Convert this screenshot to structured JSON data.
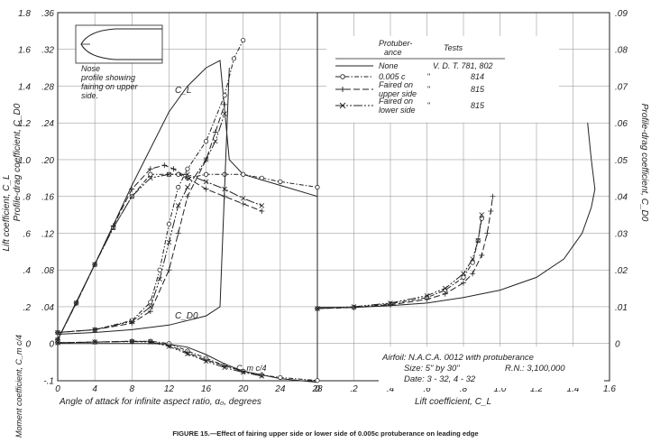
{
  "caption": "FIGURE 15.—Effect of fairing upper side or lower side of 0.005c protuberance on leading edge",
  "chart_data": [
    {
      "type": "line",
      "panel": "left",
      "xlabel": "Angle of attack for infinite aspect ratio, α₀, degrees",
      "xlim": [
        0,
        28
      ],
      "x_ticks": [
        "0",
        "4",
        "8",
        "12",
        "16",
        "20",
        "24",
        "28"
      ],
      "axes": {
        "lift": {
          "label": "Lift coefficient, C_L",
          "range": [
            0,
            1.8
          ],
          "ticks": [
            "0",
            ".2",
            ".4",
            ".6",
            ".8",
            "1.0",
            "1.2",
            "1.4",
            "1.6",
            "1.8"
          ]
        },
        "drag_left": {
          "label": "Profile-drag coefficient, C_D0",
          "range": [
            0,
            0.36
          ],
          "ticks": [
            "0",
            ".04",
            ".08",
            ".12",
            ".16",
            ".20",
            ".24",
            ".28",
            ".32",
            ".36"
          ]
        },
        "moment": {
          "label": "Moment coefficient, C_m c/4",
          "range": [
            -0.1,
            0
          ],
          "ticks": [
            "0",
            "-.1"
          ]
        }
      },
      "curve_labels": [
        "C_L",
        "C_D0",
        "C_m c/4"
      ],
      "series": [
        {
          "name": "None",
          "quantity": "lift",
          "x": [
            0,
            4,
            8,
            12,
            14,
            16,
            17.5,
            18.5,
            20,
            24,
            28
          ],
          "y": [
            0.02,
            0.43,
            0.86,
            1.26,
            1.4,
            1.5,
            1.54,
            1.0,
            0.92,
            0.86,
            0.8
          ]
        },
        {
          "name": "0.005c",
          "quantity": "lift",
          "x": [
            0,
            2,
            4,
            6,
            8,
            10,
            12,
            13,
            14,
            16,
            18,
            20,
            22,
            24,
            28
          ],
          "y": [
            0.02,
            0.22,
            0.43,
            0.63,
            0.8,
            0.92,
            0.92,
            0.92,
            0.9,
            0.92,
            0.92,
            0.92,
            0.9,
            0.88,
            0.85
          ]
        },
        {
          "name": "Faired on upper side",
          "quantity": "lift",
          "x": [
            0,
            2,
            4,
            6,
            8,
            10,
            11.5,
            12.5,
            14,
            16,
            18,
            20,
            22
          ],
          "y": [
            0.02,
            0.22,
            0.43,
            0.64,
            0.84,
            0.95,
            0.97,
            0.95,
            0.9,
            0.84,
            0.8,
            0.76,
            0.72
          ]
        },
        {
          "name": "Faired on lower side",
          "quantity": "lift",
          "x": [
            0,
            2,
            4,
            6,
            8,
            10,
            12,
            14,
            16,
            18,
            20,
            22
          ],
          "y": [
            0.02,
            0.22,
            0.43,
            0.63,
            0.8,
            0.9,
            0.92,
            0.92,
            0.88,
            0.84,
            0.79,
            0.75
          ]
        },
        {
          "name": "None",
          "quantity": "drag_left",
          "x": [
            0,
            4,
            8,
            12,
            16,
            17.5,
            18.5
          ],
          "y": [
            0.01,
            0.012,
            0.015,
            0.02,
            0.03,
            0.04,
            0.3
          ]
        },
        {
          "name": "0.005c",
          "quantity": "drag_left",
          "x": [
            0,
            4,
            8,
            10,
            11,
            12,
            13,
            14,
            16,
            18,
            19,
            20
          ],
          "y": [
            0.012,
            0.015,
            0.025,
            0.045,
            0.08,
            0.13,
            0.17,
            0.19,
            0.22,
            0.27,
            0.31,
            0.33
          ]
        },
        {
          "name": "Faired on upper side",
          "quantity": "drag_left",
          "x": [
            0,
            4,
            8,
            10,
            12,
            13,
            14,
            16,
            17,
            18
          ],
          "y": [
            0.012,
            0.015,
            0.022,
            0.035,
            0.08,
            0.12,
            0.16,
            0.2,
            0.23,
            0.26
          ]
        },
        {
          "name": "Faired on lower side",
          "quantity": "drag_left",
          "x": [
            0,
            4,
            8,
            10,
            11,
            12,
            13,
            14,
            16,
            17,
            18
          ],
          "y": [
            0.012,
            0.015,
            0.024,
            0.04,
            0.07,
            0.11,
            0.15,
            0.17,
            0.2,
            0.22,
            0.25
          ]
        },
        {
          "name": "None",
          "quantity": "moment",
          "x": [
            0,
            4,
            8,
            10,
            12,
            14,
            16,
            18,
            20,
            24,
            28
          ],
          "y": [
            0,
            0,
            0,
            0,
            -0.002,
            -0.01,
            -0.03,
            -0.055,
            -0.075,
            -0.095,
            -0.105
          ]
        },
        {
          "name": "0.005c",
          "quantity": "moment",
          "x": [
            0,
            4,
            8,
            10,
            12,
            14,
            16,
            18,
            20,
            22,
            24,
            28
          ],
          "y": [
            0.002,
            0.004,
            0.006,
            0.006,
            0,
            -0.02,
            -0.04,
            -0.06,
            -0.075,
            -0.085,
            -0.092,
            -0.1
          ]
        },
        {
          "name": "Faired on upper side",
          "quantity": "moment",
          "x": [
            0,
            4,
            8,
            10,
            12,
            14,
            16,
            18,
            20,
            22
          ],
          "y": [
            0.002,
            0.004,
            0.006,
            0.005,
            -0.005,
            -0.025,
            -0.045,
            -0.06,
            -0.075,
            -0.085
          ]
        },
        {
          "name": "Faired on lower side",
          "quantity": "moment",
          "x": [
            0,
            4,
            8,
            10,
            12,
            14,
            16,
            18,
            20,
            22
          ],
          "y": [
            0.002,
            0.004,
            0.005,
            0.004,
            -0.008,
            -0.028,
            -0.048,
            -0.065,
            -0.078,
            -0.088
          ]
        }
      ]
    },
    {
      "type": "line",
      "panel": "right",
      "xlabel": "Lift coefficient, C_L",
      "ylabel": "Profile-drag coefficient, C_D0",
      "xlim": [
        0,
        1.6
      ],
      "ylim": [
        0,
        0.09
      ],
      "x_ticks": [
        "0",
        ".2",
        ".4",
        ".6",
        ".8",
        "1.0",
        "1.2",
        "1.4",
        "1.6"
      ],
      "y_ticks": [
        "0",
        ".01",
        ".02",
        ".03",
        ".04",
        ".05",
        ".06",
        ".07",
        ".08",
        ".09"
      ],
      "series": [
        {
          "name": "None",
          "x": [
            0,
            0.2,
            0.4,
            0.6,
            0.8,
            1.0,
            1.2,
            1.35,
            1.45,
            1.5,
            1.52,
            1.5,
            1.48
          ],
          "y": [
            0.0098,
            0.0098,
            0.0103,
            0.011,
            0.0125,
            0.0145,
            0.018,
            0.023,
            0.03,
            0.037,
            0.042,
            0.05,
            0.06
          ]
        },
        {
          "name": "0.005c",
          "x": [
            0,
            0.2,
            0.4,
            0.6,
            0.7,
            0.8,
            0.85,
            0.88,
            0.9
          ],
          "y": [
            0.0095,
            0.0098,
            0.0108,
            0.0125,
            0.0145,
            0.018,
            0.022,
            0.028,
            0.034
          ]
        },
        {
          "name": "Faired on upper side",
          "x": [
            0,
            0.2,
            0.4,
            0.6,
            0.7,
            0.8,
            0.85,
            0.9,
            0.93,
            0.95,
            0.96
          ],
          "y": [
            0.0095,
            0.0098,
            0.0105,
            0.012,
            0.0135,
            0.0165,
            0.019,
            0.024,
            0.03,
            0.036,
            0.04
          ]
        },
        {
          "name": "Faired on lower side",
          "x": [
            0,
            0.2,
            0.4,
            0.6,
            0.7,
            0.8,
            0.85,
            0.88,
            0.9
          ],
          "y": [
            0.0095,
            0.01,
            0.011,
            0.013,
            0.015,
            0.019,
            0.023,
            0.028,
            0.035
          ]
        }
      ]
    }
  ],
  "legend": {
    "col1_head_1": "Protuber-",
    "col1_head_2": "ance",
    "col2_head": "Tests",
    "rows": [
      {
        "marker": "none",
        "name_1": "None",
        "name_2": "",
        "tests": "V. D. T. 781, 802"
      },
      {
        "marker": "circle",
        "name_1": "0.005 c",
        "name_2": "",
        "tests": "814"
      },
      {
        "marker": "plus",
        "name_1": "Faired on",
        "name_2": "upper side",
        "tests": "815"
      },
      {
        "marker": "cross",
        "name_1": "Faired on",
        "name_2": "lower side",
        "tests": "815"
      }
    ],
    "ditto_mark": "\""
  },
  "nose_note": [
    "Nose",
    "profile showing",
    "fairing on upper",
    "side."
  ],
  "info_box": [
    "Airfoil: N.A.C.A. 0012 with protuberance",
    "Size: 5\" by 30\"",
    "R.N.: 3,100,000",
    "Date: 3 - 32, 4 - 32"
  ],
  "colors": {
    "ink": "#222222",
    "paper": "#ffffff",
    "grid": "#8a8a8a"
  }
}
